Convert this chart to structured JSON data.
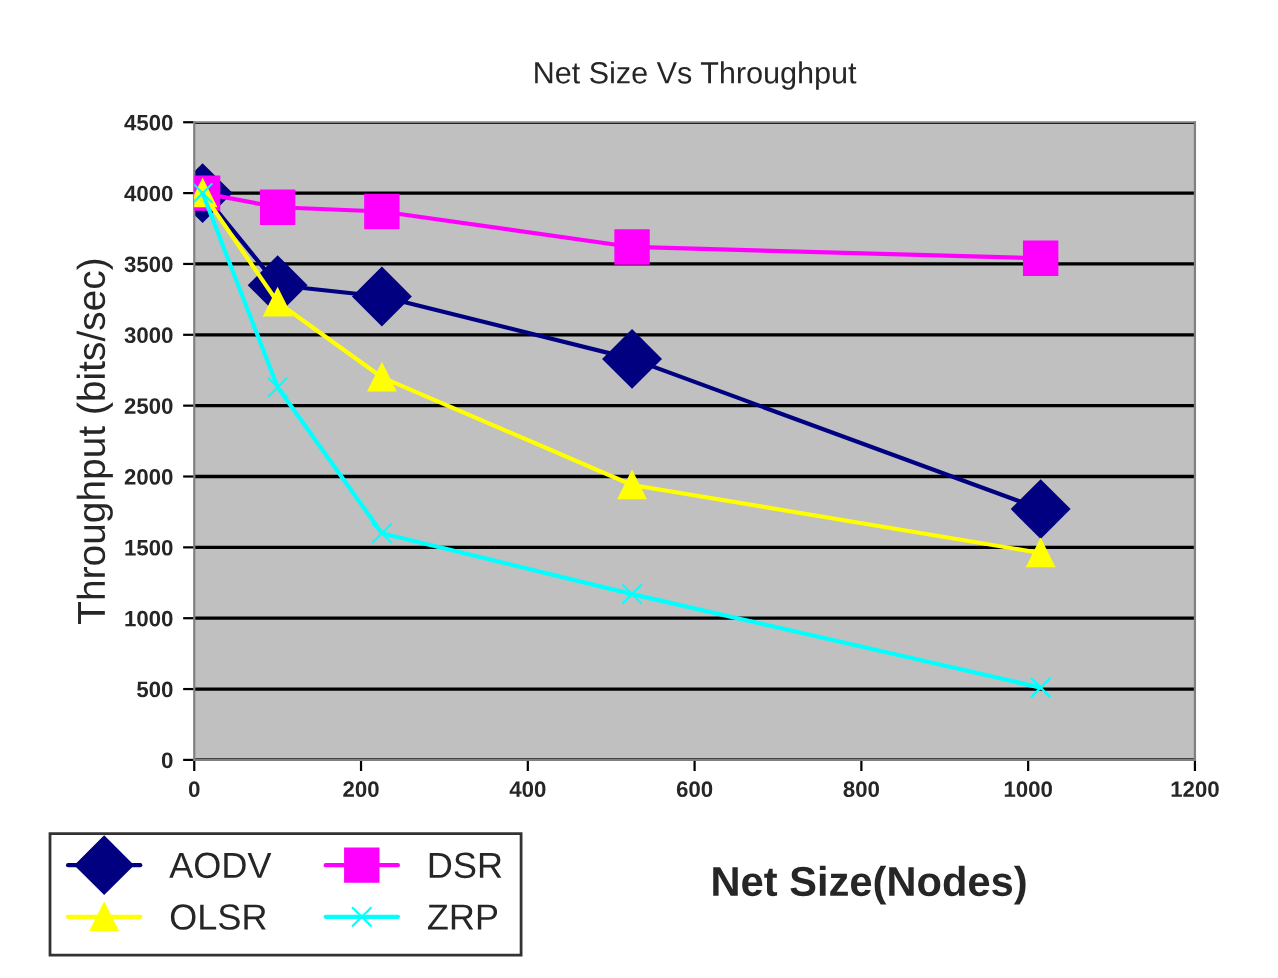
{
  "chart_data": {
    "type": "line",
    "title": "Net Size Vs Throughput",
    "xlabel": "Net Size(Nodes)",
    "ylabel": "Throughput (bits/sec)",
    "x": [
      10,
      100,
      225,
      525,
      1015
    ],
    "series": [
      {
        "name": "AODV",
        "color": "#000080",
        "marker": "diamond",
        "values": [
          4000,
          3350,
          3270,
          2830,
          1770
        ]
      },
      {
        "name": "DSR",
        "color": "#ff00ff",
        "marker": "square",
        "values": [
          4000,
          3900,
          3870,
          3620,
          3540
        ]
      },
      {
        "name": "OLSR",
        "color": "#ffff00",
        "marker": "triangle",
        "values": [
          4000,
          3230,
          2700,
          1940,
          1460
        ]
      },
      {
        "name": "ZRP",
        "color": "#00ffff",
        "marker": "cross",
        "values": [
          4000,
          2630,
          1600,
          1170,
          510
        ]
      }
    ],
    "xlim": [
      0,
      1200
    ],
    "xticks": [
      0,
      200,
      400,
      600,
      800,
      1000,
      1200
    ],
    "ylim": [
      0,
      4500
    ],
    "yticks": [
      0,
      500,
      1000,
      1500,
      2000,
      2500,
      3000,
      3500,
      4000,
      4500
    ],
    "grid": "y",
    "legend": "bottom left"
  }
}
